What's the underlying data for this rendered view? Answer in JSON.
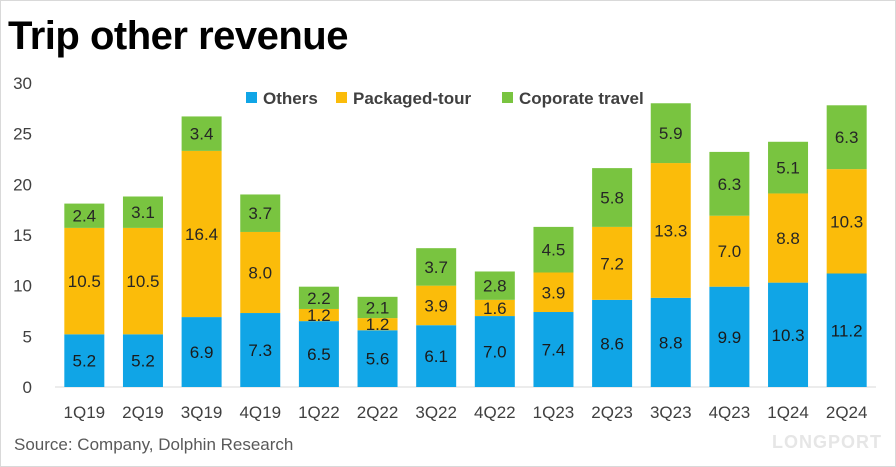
{
  "title": "Trip other revenue",
  "source": "Source: Company, Dolphin Research",
  "watermark": "LONGPORT",
  "colors": {
    "Others": "#10A5E6",
    "Packaged-tour": "#FBBC0A",
    "Coporate travel": "#79C440"
  },
  "chart_data": {
    "type": "bar",
    "stacked": true,
    "categories": [
      "1Q19",
      "2Q19",
      "3Q19",
      "4Q19",
      "1Q22",
      "2Q22",
      "3Q22",
      "4Q22",
      "1Q23",
      "2Q23",
      "3Q23",
      "4Q23",
      "1Q24",
      "2Q24"
    ],
    "series": [
      {
        "name": "Others",
        "values": [
          5.2,
          5.2,
          6.9,
          7.3,
          6.5,
          5.6,
          6.1,
          7.0,
          7.4,
          8.6,
          8.8,
          9.9,
          10.3,
          11.2
        ]
      },
      {
        "name": "Packaged-tour",
        "values": [
          10.5,
          10.5,
          16.4,
          8.0,
          1.2,
          1.2,
          3.9,
          1.6,
          3.9,
          7.2,
          13.3,
          7.0,
          8.8,
          10.3
        ]
      },
      {
        "name": "Coporate travel",
        "values": [
          2.4,
          3.1,
          3.4,
          3.7,
          2.2,
          2.1,
          3.7,
          2.8,
          4.5,
          5.8,
          5.9,
          6.3,
          5.1,
          6.3
        ]
      }
    ],
    "ylim": [
      0,
      30
    ],
    "yticks": [
      0,
      5,
      10,
      15,
      20,
      25,
      30
    ],
    "legend": "top",
    "grid": false
  }
}
